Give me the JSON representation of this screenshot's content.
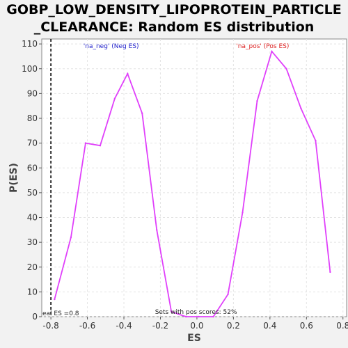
{
  "title_line1": "GOBP_LOW_DENSITY_LIPOPROTEIN_PARTICLE",
  "title_line2": "_CLEARANCE: Random ES distribution",
  "colors": {
    "series": "#e040fb",
    "neg_label": "#2222cc",
    "pos_label": "#dd2222",
    "observed_line": "#000000"
  },
  "chart_data": {
    "type": "line",
    "title": "GOBP_LOW_DENSITY_LIPOPROTEIN_PARTICLE_CLEARANCE: Random ES distribution",
    "xlabel": "ES",
    "ylabel": "P(ES)",
    "xlim": [
      -0.85,
      0.82
    ],
    "ylim": [
      0,
      112
    ],
    "xticks": [
      "-0.8",
      "-0.6",
      "-0.4",
      "-0.2",
      "0.0",
      "0.2",
      "0.4",
      "0.6",
      "0.8"
    ],
    "xtick_values": [
      -0.8,
      -0.6,
      -0.4,
      -0.2,
      0.0,
      0.2,
      0.4,
      0.6,
      0.8
    ],
    "yticks": [
      "0",
      "10",
      "20",
      "30",
      "40",
      "50",
      "60",
      "70",
      "80",
      "90",
      "100",
      "110"
    ],
    "ytick_values": [
      0,
      10,
      20,
      30,
      40,
      50,
      60,
      70,
      80,
      90,
      100,
      110
    ],
    "grid": true,
    "series": [
      {
        "x": [
          -0.78,
          -0.69,
          -0.61,
          -0.53,
          -0.45,
          -0.38,
          -0.3,
          -0.22,
          -0.14,
          -0.06,
          0.01,
          0.09,
          0.17,
          0.25,
          0.33,
          0.41,
          0.49,
          0.57,
          0.65,
          0.73
        ],
        "values": [
          7,
          32,
          70,
          69,
          88,
          98,
          82,
          35,
          2,
          0,
          0,
          0,
          9,
          42,
          87,
          107,
          100,
          84,
          71,
          18
        ]
      }
    ],
    "observed_es": -0.8,
    "annotations": {
      "neg_label": "'na_neg' (Neg ES)",
      "pos_label": "'na_pos' (Pos ES)",
      "observed_label": "eal ES =0.8",
      "pos_scores": "Sets with pos scores: 52%"
    }
  }
}
